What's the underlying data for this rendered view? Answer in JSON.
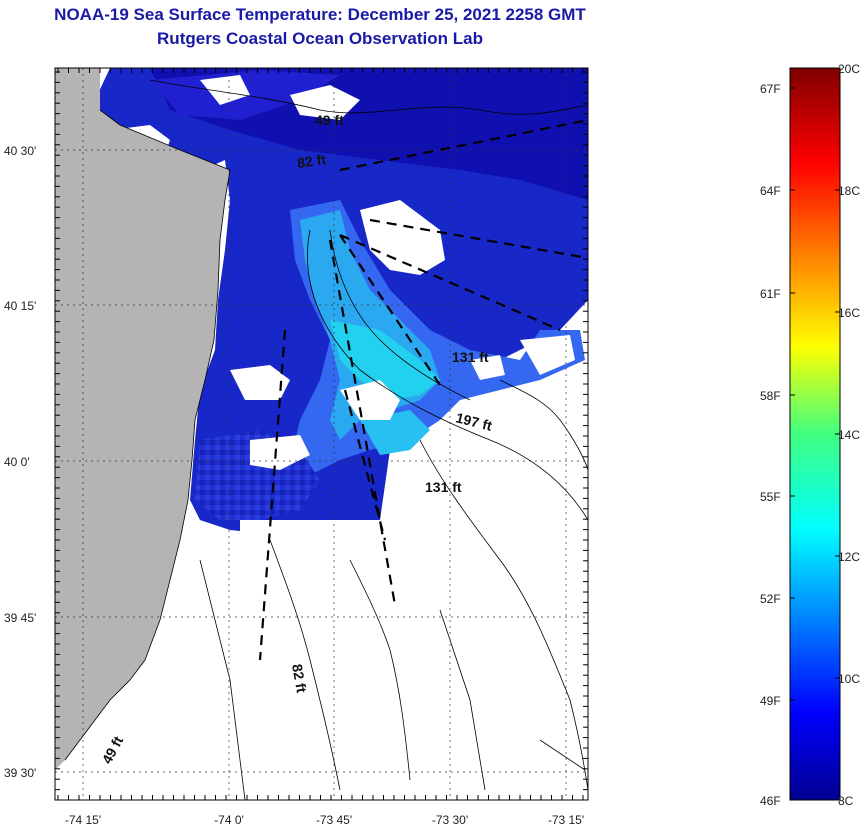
{
  "title": {
    "line1": "NOAA-19 Sea Surface Temperature:  December 25, 2021 2258 GMT",
    "line2": "Rutgers Coastal Ocean Observation Lab"
  },
  "map": {
    "lat_ticks": [
      "40 30'",
      "40 15'",
      "40 0'",
      "39 45'",
      "39 30'"
    ],
    "lon_ticks": [
      "-74 15'",
      "-74 0'",
      "-73 45'",
      "-73 30'",
      "-73 15'"
    ],
    "depth_labels": [
      "49 ft",
      "82 ft",
      "131 ft",
      "197 ft",
      "131 ft",
      "82 ft",
      "49 ft"
    ],
    "land_color": "#b4b4b4",
    "cloud_color": "#ffffff"
  },
  "colorbar": {
    "fahrenheit_ticks": [
      "67F",
      "64F",
      "61F",
      "58F",
      "55F",
      "52F",
      "49F",
      "46F"
    ],
    "celsius_ticks": [
      "20C",
      "18C",
      "16C",
      "14C",
      "12C",
      "10C",
      "8C"
    ],
    "min_c": 8,
    "max_c": 20
  }
}
